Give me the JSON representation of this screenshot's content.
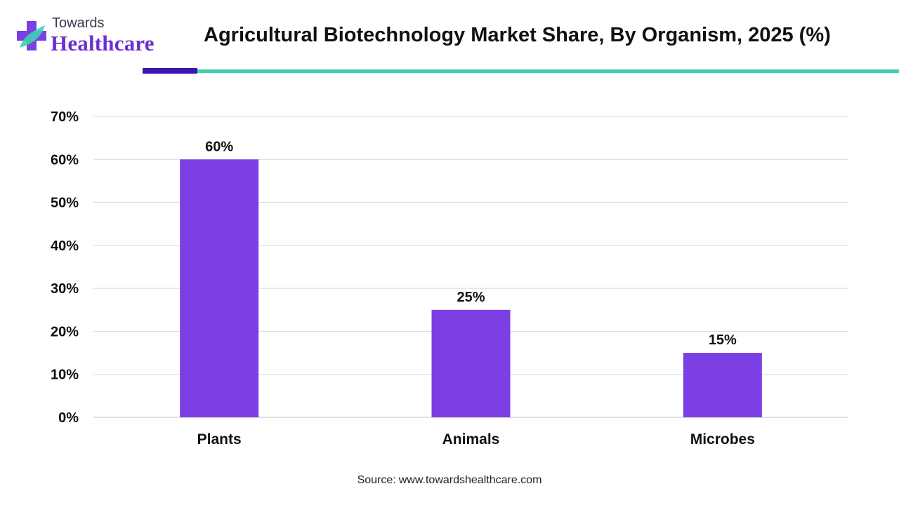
{
  "brand": {
    "line1": "Towards",
    "line2": "Healthcare",
    "colors": {
      "text": "#3b3b4f",
      "accent": "#6b2fd6",
      "cross_a": "#7b3fe4",
      "cross_b": "#3fd1ad"
    }
  },
  "title": "Agricultural Biotechnology Market Share, By Organism, 2025 (%)",
  "source": {
    "prefix": "Source:",
    "url": "www.towardshealthcare.com"
  },
  "colors": {
    "bar": "#7b3fe4",
    "rule_dark": "#3a15b0",
    "rule_teal": "#3fd1ad",
    "grid": "#d9d9d9"
  },
  "chart_data": {
    "type": "bar",
    "title": "Agricultural Biotechnology Market Share, By Organism, 2025 (%)",
    "categories": [
      "Plants",
      "Animals",
      "Microbes"
    ],
    "values": [
      60,
      25,
      15
    ],
    "data_labels": [
      "60%",
      "25%",
      "15%"
    ],
    "ylim": [
      0,
      70
    ],
    "yticks": [
      0,
      10,
      20,
      30,
      40,
      50,
      60,
      70
    ],
    "ytick_labels": [
      "0%",
      "10%",
      "20%",
      "30%",
      "40%",
      "50%",
      "60%",
      "70%"
    ],
    "xlabel": "",
    "ylabel": "",
    "grid": true,
    "legend": "none"
  }
}
